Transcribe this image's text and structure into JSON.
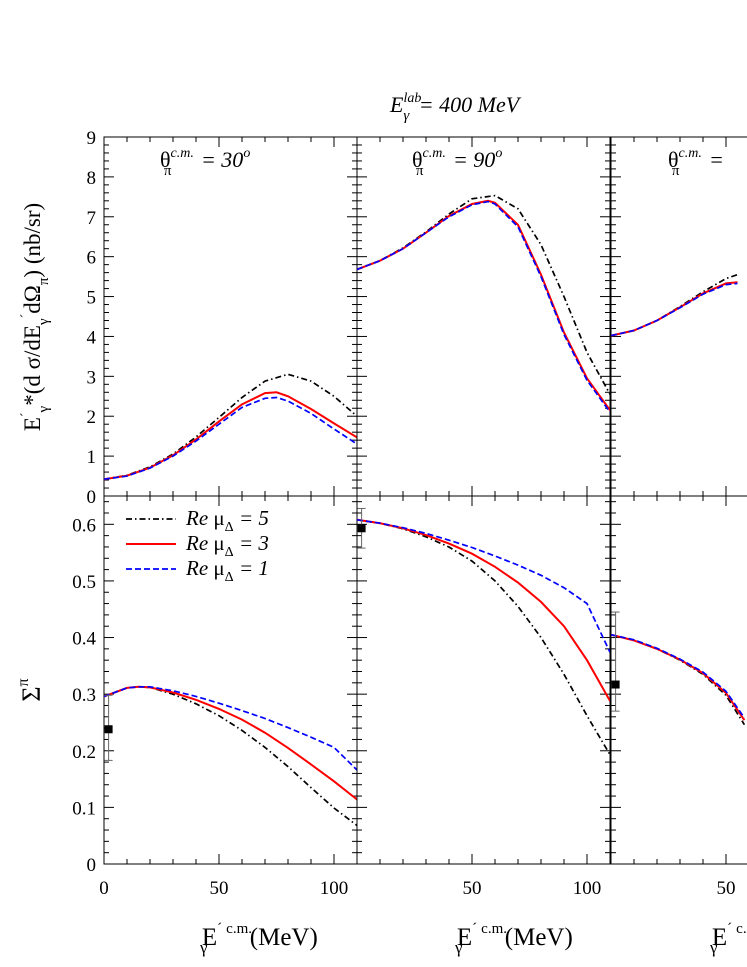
{
  "figure": {
    "top_title": {
      "sym": "E",
      "sub": "γ",
      "sup": "lab",
      "rest": " = 400 MeV"
    },
    "top_ylabel": {
      "main": "E",
      "prime": "´",
      "sub": "γ",
      "rest": "*(d σ/dE",
      "sub2": "γ",
      "prime2": "´",
      "rest2": "dΩ",
      "sub3": "π",
      "rest3": ") (nb/sr)"
    },
    "bottom_ylabel": {
      "main": "Σ",
      "sup": "π"
    },
    "xlabel": {
      "main": "E",
      "sub": "γ",
      "prime": "´",
      "sup": "c.m.",
      "rest": " (MeV)"
    },
    "panel_titles": [
      {
        "sym": "θ",
        "sub": "π",
        "sup": "c.m.",
        "rest": " = 30",
        "deg": "o"
      },
      {
        "sym": "θ",
        "sub": "π",
        "sup": "c.m.",
        "rest": " = 90",
        "deg": "o"
      },
      {
        "sym": "θ",
        "sub": "π",
        "sup": "c.m.",
        "rest": " = ",
        "deg": ""
      }
    ],
    "legend": [
      {
        "pre": "Re ",
        "mu": "μ",
        "sub": "Δ",
        "post": " = 5",
        "color": "#000000",
        "style": "dashdot"
      },
      {
        "pre": "Re ",
        "mu": "μ",
        "sub": "Δ",
        "post": " = 3",
        "color": "#ff0000",
        "style": "solid"
      },
      {
        "pre": "Re ",
        "mu": "μ",
        "sub": "Δ",
        "post": " = 1",
        "color": "#0000ff",
        "style": "dashed"
      }
    ]
  },
  "chart_data": [
    {
      "type": "line",
      "panel": "top-left",
      "xlim": [
        0,
        110
      ],
      "ylim": [
        0,
        9
      ],
      "yticks": [
        "0",
        "1",
        "2",
        "3",
        "4",
        "5",
        "6",
        "7",
        "8",
        "9"
      ],
      "series": [
        {
          "name": "Re μΔ = 5",
          "color": "#000000",
          "style": "dashdot",
          "x": [
            0,
            10,
            20,
            30,
            40,
            50,
            60,
            70,
            80,
            90,
            100,
            110
          ],
          "y": [
            0.42,
            0.52,
            0.73,
            1.05,
            1.48,
            1.97,
            2.47,
            2.88,
            3.05,
            2.88,
            2.5,
            2.0
          ]
        },
        {
          "name": "Re μΔ = 3",
          "color": "#ff0000",
          "style": "solid",
          "x": [
            0,
            10,
            20,
            30,
            40,
            50,
            60,
            70,
            75,
            80,
            90,
            100,
            110
          ],
          "y": [
            0.42,
            0.51,
            0.71,
            1.02,
            1.42,
            1.87,
            2.3,
            2.58,
            2.6,
            2.5,
            2.18,
            1.82,
            1.47
          ]
        },
        {
          "name": "Re μΔ = 1",
          "color": "#0000ff",
          "style": "dashed",
          "x": [
            0,
            10,
            20,
            30,
            40,
            50,
            60,
            70,
            75,
            80,
            90,
            100,
            110
          ],
          "y": [
            0.42,
            0.5,
            0.7,
            1.0,
            1.38,
            1.8,
            2.22,
            2.45,
            2.47,
            2.38,
            2.07,
            1.68,
            1.3
          ]
        }
      ]
    },
    {
      "type": "line",
      "panel": "top-middle",
      "xlim": [
        0,
        110
      ],
      "ylim": [
        0,
        9
      ],
      "series": [
        {
          "name": "Re μΔ = 5",
          "color": "#000000",
          "style": "dashdot",
          "x": [
            0,
            10,
            20,
            30,
            40,
            50,
            60,
            70,
            80,
            90,
            100,
            110
          ],
          "y": [
            5.68,
            5.9,
            6.22,
            6.62,
            7.07,
            7.45,
            7.53,
            7.2,
            6.3,
            5.0,
            3.6,
            2.55
          ]
        },
        {
          "name": "Re μΔ = 3",
          "color": "#ff0000",
          "style": "solid",
          "x": [
            0,
            10,
            20,
            30,
            40,
            50,
            57,
            60,
            70,
            80,
            90,
            100,
            110
          ],
          "y": [
            5.68,
            5.9,
            6.2,
            6.6,
            7.02,
            7.32,
            7.4,
            7.35,
            6.8,
            5.55,
            4.1,
            2.95,
            2.15
          ]
        },
        {
          "name": "Re μΔ = 1",
          "color": "#0000ff",
          "style": "dashed",
          "x": [
            0,
            10,
            20,
            30,
            40,
            50,
            57,
            60,
            70,
            80,
            90,
            100,
            110
          ],
          "y": [
            5.68,
            5.9,
            6.2,
            6.6,
            7.0,
            7.3,
            7.38,
            7.32,
            6.75,
            5.5,
            4.05,
            2.9,
            2.1
          ]
        }
      ]
    },
    {
      "type": "line",
      "panel": "top-right",
      "xlim": [
        0,
        110
      ],
      "ylim": [
        0,
        9
      ],
      "series": [
        {
          "name": "Re μΔ = 5",
          "color": "#000000",
          "style": "dashdot",
          "x": [
            0,
            10,
            20,
            30,
            40,
            50,
            55
          ],
          "y": [
            4.02,
            4.15,
            4.4,
            4.75,
            5.12,
            5.45,
            5.55
          ]
        },
        {
          "name": "Re μΔ = 3",
          "color": "#ff0000",
          "style": "solid",
          "x": [
            0,
            10,
            20,
            30,
            40,
            50,
            55
          ],
          "y": [
            4.02,
            4.15,
            4.4,
            4.73,
            5.08,
            5.33,
            5.36
          ]
        },
        {
          "name": "Re μΔ = 1",
          "color": "#0000ff",
          "style": "dashed",
          "x": [
            0,
            10,
            20,
            30,
            40,
            50,
            55
          ],
          "y": [
            4.02,
            4.15,
            4.4,
            4.72,
            5.06,
            5.3,
            5.33
          ]
        }
      ]
    },
    {
      "type": "line",
      "panel": "bottom-left",
      "xlim": [
        0,
        110
      ],
      "ylim": [
        0,
        0.65
      ],
      "xticks": [
        "0",
        "50",
        "100"
      ],
      "yticks": [
        "0",
        "0.1",
        "0.2",
        "0.3",
        "0.4",
        "0.5",
        "0.6"
      ],
      "points": [
        {
          "x": 2,
          "y": 0.238,
          "err": [
            0.183,
            0.298
          ]
        }
      ],
      "series": [
        {
          "name": "Re μΔ = 5",
          "color": "#000000",
          "style": "dashdot",
          "x": [
            0,
            10,
            15,
            20,
            30,
            40,
            50,
            60,
            70,
            80,
            90,
            100,
            110
          ],
          "y": [
            0.296,
            0.311,
            0.313,
            0.312,
            0.3,
            0.283,
            0.262,
            0.236,
            0.206,
            0.172,
            0.135,
            0.099,
            0.068
          ]
        },
        {
          "name": "Re μΔ = 3",
          "color": "#ff0000",
          "style": "solid",
          "x": [
            0,
            10,
            15,
            20,
            30,
            40,
            50,
            60,
            70,
            80,
            90,
            100,
            110
          ],
          "y": [
            0.296,
            0.311,
            0.313,
            0.312,
            0.303,
            0.29,
            0.274,
            0.255,
            0.232,
            0.205,
            0.176,
            0.146,
            0.114
          ]
        },
        {
          "name": "Re μΔ = 1",
          "color": "#0000ff",
          "style": "dashed",
          "x": [
            0,
            10,
            15,
            20,
            30,
            40,
            50,
            60,
            70,
            80,
            90,
            100,
            110
          ],
          "y": [
            0.296,
            0.311,
            0.313,
            0.313,
            0.306,
            0.296,
            0.284,
            0.271,
            0.257,
            0.241,
            0.224,
            0.206,
            0.166
          ]
        }
      ]
    },
    {
      "type": "line",
      "panel": "bottom-middle",
      "xlim": [
        0,
        110
      ],
      "ylim": [
        0,
        0.65
      ],
      "xticks": [
        "50",
        "100"
      ],
      "points": [
        {
          "x": 2,
          "y": 0.593,
          "err": [
            0.558,
            0.628
          ]
        }
      ],
      "series": [
        {
          "name": "Re μΔ = 5",
          "color": "#000000",
          "style": "dashdot",
          "x": [
            0,
            10,
            20,
            30,
            40,
            50,
            60,
            70,
            80,
            90,
            100,
            110
          ],
          "y": [
            0.608,
            0.602,
            0.592,
            0.578,
            0.56,
            0.535,
            0.5,
            0.455,
            0.4,
            0.335,
            0.262,
            0.193
          ]
        },
        {
          "name": "Re μΔ = 3",
          "color": "#ff0000",
          "style": "solid",
          "x": [
            0,
            10,
            20,
            30,
            40,
            50,
            60,
            70,
            80,
            90,
            100,
            110
          ],
          "y": [
            0.608,
            0.602,
            0.593,
            0.581,
            0.566,
            0.548,
            0.525,
            0.497,
            0.463,
            0.42,
            0.36,
            0.288
          ]
        },
        {
          "name": "Re μΔ = 1",
          "color": "#0000ff",
          "style": "dashed",
          "x": [
            0,
            10,
            20,
            30,
            40,
            50,
            60,
            70,
            80,
            90,
            100,
            110
          ],
          "y": [
            0.608,
            0.602,
            0.594,
            0.584,
            0.572,
            0.559,
            0.544,
            0.528,
            0.51,
            0.488,
            0.46,
            0.374
          ]
        }
      ]
    },
    {
      "type": "line",
      "panel": "bottom-right",
      "xlim": [
        0,
        110
      ],
      "ylim": [
        0,
        0.65
      ],
      "xticks": [
        "50"
      ],
      "points": [
        {
          "x": 2,
          "y": 0.317,
          "err": [
            0.27,
            0.445
          ]
        }
      ],
      "series": [
        {
          "name": "Re μΔ = 5",
          "color": "#000000",
          "style": "dashdot",
          "x": [
            0,
            10,
            20,
            30,
            40,
            50,
            58
          ],
          "y": [
            0.405,
            0.395,
            0.38,
            0.36,
            0.335,
            0.298,
            0.246
          ]
        },
        {
          "name": "Re μΔ = 3",
          "color": "#ff0000",
          "style": "solid",
          "x": [
            0,
            10,
            20,
            30,
            40,
            50,
            58
          ],
          "y": [
            0.405,
            0.395,
            0.38,
            0.361,
            0.337,
            0.302,
            0.254
          ]
        },
        {
          "name": "Re μΔ = 1",
          "color": "#0000ff",
          "style": "dashed",
          "x": [
            0,
            10,
            20,
            30,
            40,
            50,
            58
          ],
          "y": [
            0.405,
            0.396,
            0.381,
            0.362,
            0.339,
            0.305,
            0.258
          ]
        }
      ]
    }
  ]
}
